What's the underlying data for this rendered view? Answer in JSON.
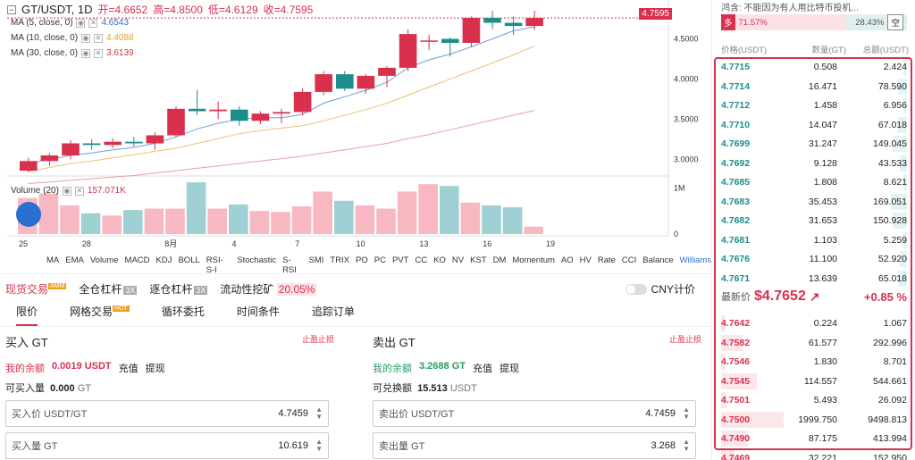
{
  "chart_header": {
    "symbol": "GT/USDT, 1D",
    "open_label": "开=4.6652",
    "high_label": "高=4.8500",
    "low_label": "低=4.6129",
    "close_label": "收=4.7595"
  },
  "current_price_tag": "4.7595",
  "ma_legend": [
    {
      "label": "MA (5, close, 0)",
      "value": "4.6543",
      "color": "#2a70d0"
    },
    {
      "label": "MA (10, close, 0)",
      "value": "4.4088",
      "color": "#e8a020"
    },
    {
      "label": "MA (30, close, 0)",
      "value": "3.6139",
      "color": "#c93a3a"
    }
  ],
  "volume_legend": {
    "label": "Volume (20)",
    "value": "157.071K"
  },
  "y_axis_ticks": [
    "4.5000",
    "4.0000",
    "3.5000",
    "3.0000"
  ],
  "volume_axis_ticks": [
    "1M",
    "0"
  ],
  "x_axis_ticks": [
    "25",
    "28",
    "8月",
    "4",
    "7",
    "10",
    "13",
    "16",
    "19"
  ],
  "indicators": [
    "MA",
    "EMA",
    "Volume",
    "MACD",
    "KDJ",
    "BOLL",
    "RSI-S-I",
    "Stochastic",
    "S-RSI",
    "SMI",
    "TRIX",
    "PO",
    "PC",
    "PVT",
    "CC",
    "KO",
    "NV",
    "KST",
    "DM",
    "Momentum",
    "AO",
    "HV",
    "Rate",
    "CCI",
    "Balance",
    "Williams"
  ],
  "chart_data": {
    "type": "candlestick",
    "x_labels_sparse": [
      "25",
      "28",
      "8月",
      "4",
      "7",
      "10",
      "13",
      "16",
      "19"
    ],
    "ohlc": [
      [
        2.86,
        3.02,
        2.84,
        2.98
      ],
      [
        2.98,
        3.08,
        2.92,
        3.05
      ],
      [
        3.05,
        3.24,
        3.0,
        3.2
      ],
      [
        3.2,
        3.25,
        3.12,
        3.18
      ],
      [
        3.18,
        3.26,
        3.14,
        3.22
      ],
      [
        3.22,
        3.28,
        3.16,
        3.2
      ],
      [
        3.2,
        3.34,
        3.12,
        3.3
      ],
      [
        3.3,
        3.66,
        3.28,
        3.63
      ],
      [
        3.63,
        3.86,
        3.55,
        3.6
      ],
      [
        3.6,
        3.72,
        3.5,
        3.62
      ],
      [
        3.62,
        3.66,
        3.42,
        3.48
      ],
      [
        3.48,
        3.6,
        3.44,
        3.57
      ],
      [
        3.57,
        3.63,
        3.45,
        3.59
      ],
      [
        3.59,
        3.88,
        3.55,
        3.84
      ],
      [
        3.84,
        4.1,
        3.8,
        4.06
      ],
      [
        4.06,
        4.1,
        3.85,
        3.88
      ],
      [
        3.88,
        4.06,
        3.82,
        4.04
      ],
      [
        4.04,
        4.16,
        3.9,
        4.14
      ],
      [
        4.14,
        4.62,
        4.1,
        4.56
      ],
      [
        4.48,
        4.55,
        4.36,
        4.48
      ],
      [
        4.5,
        4.52,
        4.28,
        4.45
      ],
      [
        4.45,
        4.78,
        4.4,
        4.76
      ],
      [
        4.76,
        4.85,
        4.62,
        4.7
      ],
      [
        4.7,
        4.78,
        4.55,
        4.66
      ],
      [
        4.66,
        4.85,
        4.61,
        4.76
      ]
    ],
    "volume": [
      0.78,
      0.88,
      0.62,
      0.45,
      0.4,
      0.52,
      0.55,
      0.55,
      1.12,
      0.55,
      0.64,
      0.5,
      0.48,
      0.6,
      0.92,
      0.72,
      0.62,
      0.55,
      0.92,
      1.08,
      1.04,
      0.68,
      0.62,
      0.58,
      0.16
    ],
    "ma5": [
      2.95,
      3.0,
      3.05,
      3.08,
      3.12,
      3.15,
      3.2,
      3.28,
      3.38,
      3.45,
      3.5,
      3.52,
      3.52,
      3.56,
      3.7,
      3.78,
      3.86,
      3.96,
      4.14,
      4.24,
      4.31,
      4.4,
      4.5,
      4.6,
      4.65
    ],
    "ma10": [
      2.85,
      2.9,
      2.95,
      2.98,
      3.02,
      3.06,
      3.1,
      3.14,
      3.2,
      3.26,
      3.32,
      3.36,
      3.39,
      3.42,
      3.48,
      3.55,
      3.62,
      3.7,
      3.8,
      3.9,
      4.0,
      4.1,
      4.2,
      4.3,
      4.41
    ],
    "ma30": [
      2.7,
      2.72,
      2.74,
      2.76,
      2.78,
      2.8,
      2.83,
      2.86,
      2.89,
      2.92,
      2.95,
      2.98,
      3.01,
      3.04,
      3.08,
      3.12,
      3.16,
      3.2,
      3.26,
      3.31,
      3.37,
      3.43,
      3.49,
      3.55,
      3.61
    ],
    "ylim": [
      2.85,
      4.85
    ],
    "vlim": [
      0,
      1.2
    ]
  },
  "colors": {
    "up": "#d9304e",
    "down": "#1f8c8c",
    "vol_up": "#f7b8c2",
    "vol_down": "#9fd0d3",
    "accent": "#d9304e"
  },
  "trade": {
    "modes": [
      {
        "label": "现货交易",
        "tag": "AMM"
      },
      {
        "label": "全仓杠杆",
        "tag": "3X"
      },
      {
        "label": "逐仓杠杆",
        "tag": "3X"
      },
      {
        "label": "流动性挖矿",
        "tag": "20.05%"
      }
    ],
    "cny_label": "CNY计价",
    "tabs": [
      {
        "label": "限价",
        "tag": ""
      },
      {
        "label": "网格交易",
        "tag": "HOT"
      },
      {
        "label": "循环委托",
        "tag": ""
      },
      {
        "label": "时间条件",
        "tag": ""
      },
      {
        "label": "追踪订单",
        "tag": ""
      }
    ],
    "buy": {
      "title": "买入 GT",
      "stop": "止盈止损",
      "balance_label": "我的余额",
      "balance_value": "0.0019 USDT",
      "deposit": "充值",
      "withdraw": "提现",
      "avail_label": "可买入量",
      "avail_value": "0.000",
      "avail_unit": "GT",
      "price_label": "买入价 USDT/GT",
      "price_value": "4.7459",
      "amount_label": "买入量 GT",
      "amount_value": "10.619"
    },
    "sell": {
      "title": "卖出 GT",
      "stop": "止盈止损",
      "balance_label": "我的余额",
      "balance_value": "3.2688 GT",
      "deposit": "充值",
      "withdraw": "提现",
      "avail_label": "可兑换额",
      "avail_value": "15.513",
      "avail_unit": "USDT",
      "price_label": "卖出价 USDT/GT",
      "price_value": "4.7459",
      "amount_label": "卖出量 GT",
      "amount_value": "3.268"
    }
  },
  "book": {
    "notice": "鸿含: 不能因为有人用比特币投机...",
    "buy_badge": "多",
    "buy_pct": "71.57%",
    "sell_pct": "28.43%",
    "sell_badge": "空",
    "headers": [
      "价格(USDT)",
      "数量(GT)",
      "总额(USDT)"
    ],
    "asks": [
      {
        "p": "4.7715",
        "a": "0.508",
        "t": "2.424",
        "depth": 0.02
      },
      {
        "p": "4.7714",
        "a": "16.471",
        "t": "78.590",
        "depth": 0.05
      },
      {
        "p": "4.7712",
        "a": "1.458",
        "t": "6.956",
        "depth": 0.02
      },
      {
        "p": "4.7710",
        "a": "14.047",
        "t": "67.018",
        "depth": 0.05
      },
      {
        "p": "4.7699",
        "a": "31.247",
        "t": "149.045",
        "depth": 0.08
      },
      {
        "p": "4.7692",
        "a": "9.128",
        "t": "43.533",
        "depth": 0.04
      },
      {
        "p": "4.7685",
        "a": "1.808",
        "t": "8.621",
        "depth": 0.02
      },
      {
        "p": "4.7683",
        "a": "35.453",
        "t": "169.051",
        "depth": 0.09
      },
      {
        "p": "4.7682",
        "a": "31.653",
        "t": "150.928",
        "depth": 0.08
      },
      {
        "p": "4.7681",
        "a": "1.103",
        "t": "5.259",
        "depth": 0.02
      },
      {
        "p": "4.7676",
        "a": "11.100",
        "t": "52.920",
        "depth": 0.04
      },
      {
        "p": "4.7671",
        "a": "13.639",
        "t": "65.018",
        "depth": 0.05
      }
    ],
    "last_label": "最新价",
    "last_price": "$4.7652",
    "last_arrow": "↗",
    "last_change": "+0.85 %",
    "bids": [
      {
        "p": "4.7642",
        "a": "0.224",
        "t": "1.067",
        "depth": 0.02
      },
      {
        "p": "4.7582",
        "a": "61.577",
        "t": "292.996",
        "depth": 0.12
      },
      {
        "p": "4.7546",
        "a": "1.830",
        "t": "8.701",
        "depth": 0.02
      },
      {
        "p": "4.7545",
        "a": "114.557",
        "t": "544.661",
        "depth": 0.2
      },
      {
        "p": "4.7501",
        "a": "5.493",
        "t": "26.092",
        "depth": 0.03
      },
      {
        "p": "4.7500",
        "a": "1999.750",
        "t": "9498.813",
        "depth": 0.35
      },
      {
        "p": "4.7490",
        "a": "87.175",
        "t": "413.994",
        "depth": 0.15
      },
      {
        "p": "4.7469",
        "a": "32.221",
        "t": "152.950",
        "depth": 0.08
      }
    ]
  }
}
